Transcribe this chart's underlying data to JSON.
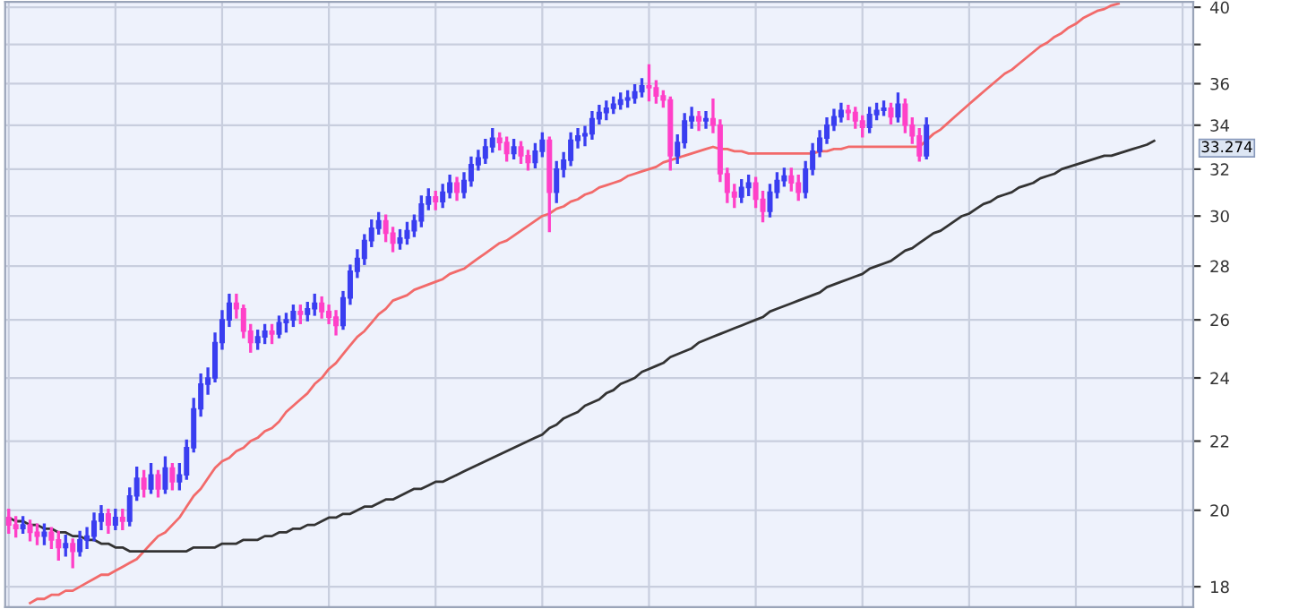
{
  "chart_data": {
    "type": "candlestick",
    "log": true,
    "grid": true,
    "tick_labels": "y",
    "categories": [
      null,
      null,
      null,
      null,
      null,
      null,
      null,
      null,
      null,
      null,
      null,
      null,
      null,
      null,
      null,
      null,
      null,
      null,
      null,
      null,
      null,
      null,
      null,
      null,
      null,
      null,
      null,
      null,
      null,
      null,
      null,
      null,
      null,
      null,
      null,
      null,
      null,
      null,
      null,
      null,
      null,
      null,
      null,
      null,
      null,
      null,
      null,
      null,
      null,
      null,
      null,
      null,
      null,
      null,
      null,
      null,
      null,
      null,
      null,
      null,
      null,
      null,
      null,
      null,
      null,
      null,
      null,
      null,
      null,
      null,
      null,
      null,
      null,
      null,
      null,
      null,
      null,
      null,
      null,
      null,
      null,
      null,
      null,
      null,
      null,
      null,
      null,
      null,
      null,
      null,
      null,
      null,
      null,
      null,
      null,
      null,
      null,
      null,
      null,
      null,
      null,
      null,
      null,
      null,
      null,
      null,
      null,
      null,
      null,
      null,
      null,
      null,
      null,
      null,
      null,
      null,
      null,
      null,
      null,
      null,
      null,
      null,
      null,
      null,
      null,
      null,
      null,
      null,
      null,
      null,
      null,
      null,
      null,
      null,
      null,
      null,
      null,
      null,
      null,
      null,
      null,
      null,
      null,
      null,
      null,
      null,
      null,
      null,
      null,
      null,
      null,
      null,
      null,
      null,
      null,
      null,
      null,
      null,
      null,
      null,
      null,
      null,
      null,
      null,
      null,
      null,
      null
    ],
    "ohlc": [
      [
        19.8,
        20.0,
        19.4,
        19.6
      ],
      [
        19.6,
        19.8,
        19.3,
        19.5
      ],
      [
        19.5,
        19.8,
        19.4,
        19.6
      ],
      [
        19.6,
        19.7,
        19.2,
        19.4
      ],
      [
        19.4,
        19.6,
        19.1,
        19.3
      ],
      [
        19.3,
        19.6,
        19.1,
        19.4
      ],
      [
        19.4,
        19.5,
        19.0,
        19.2
      ],
      [
        19.2,
        19.4,
        18.7,
        19.0
      ],
      [
        19.0,
        19.3,
        18.8,
        19.1
      ],
      [
        19.1,
        19.2,
        18.5,
        18.9
      ],
      [
        18.9,
        19.4,
        18.8,
        19.2
      ],
      [
        19.2,
        19.5,
        19.0,
        19.3
      ],
      [
        19.3,
        19.9,
        19.2,
        19.7
      ],
      [
        19.7,
        20.1,
        19.5,
        19.9
      ],
      [
        19.9,
        20.0,
        19.4,
        19.6
      ],
      [
        19.6,
        20.0,
        19.5,
        19.8
      ],
      [
        19.8,
        20.0,
        19.5,
        19.7
      ],
      [
        19.7,
        20.6,
        19.6,
        20.4
      ],
      [
        20.4,
        21.2,
        20.3,
        20.9
      ],
      [
        20.9,
        21.1,
        20.4,
        20.6
      ],
      [
        20.6,
        21.3,
        20.5,
        21.0
      ],
      [
        21.0,
        21.1,
        20.4,
        20.6
      ],
      [
        20.6,
        21.5,
        20.5,
        21.2
      ],
      [
        21.2,
        21.3,
        20.6,
        20.8
      ],
      [
        20.8,
        21.3,
        20.6,
        21.0
      ],
      [
        21.0,
        22.0,
        20.9,
        21.8
      ],
      [
        21.8,
        23.3,
        21.7,
        23.0
      ],
      [
        23.0,
        24.1,
        22.8,
        23.8
      ],
      [
        23.8,
        24.3,
        23.5,
        24.0
      ],
      [
        24.0,
        25.5,
        23.9,
        25.2
      ],
      [
        25.2,
        26.3,
        25.0,
        26.0
      ],
      [
        26.0,
        26.9,
        25.8,
        26.6
      ],
      [
        26.6,
        26.9,
        26.1,
        26.4
      ],
      [
        26.4,
        26.5,
        25.4,
        25.6
      ],
      [
        25.6,
        25.8,
        24.9,
        25.2
      ],
      [
        25.2,
        25.6,
        25.0,
        25.4
      ],
      [
        25.4,
        25.8,
        25.2,
        25.6
      ],
      [
        25.6,
        25.8,
        25.2,
        25.5
      ],
      [
        25.5,
        26.1,
        25.4,
        25.9
      ],
      [
        25.9,
        26.2,
        25.6,
        26.0
      ],
      [
        26.0,
        26.5,
        25.8,
        26.3
      ],
      [
        26.3,
        26.5,
        25.9,
        26.2
      ],
      [
        26.2,
        26.6,
        26.0,
        26.4
      ],
      [
        26.4,
        26.9,
        26.2,
        26.6
      ],
      [
        26.6,
        26.8,
        26.1,
        26.3
      ],
      [
        26.3,
        26.5,
        25.9,
        26.1
      ],
      [
        26.1,
        26.3,
        25.5,
        25.8
      ],
      [
        25.8,
        27.0,
        25.7,
        26.8
      ],
      [
        26.8,
        28.0,
        26.6,
        27.8
      ],
      [
        27.8,
        28.6,
        27.6,
        28.3
      ],
      [
        28.3,
        29.2,
        28.1,
        29.0
      ],
      [
        29.0,
        29.8,
        28.8,
        29.5
      ],
      [
        29.5,
        30.1,
        29.3,
        29.8
      ],
      [
        29.8,
        30.0,
        29.0,
        29.3
      ],
      [
        29.3,
        29.5,
        28.6,
        28.9
      ],
      [
        28.9,
        29.4,
        28.7,
        29.1
      ],
      [
        29.1,
        29.7,
        28.9,
        29.4
      ],
      [
        29.4,
        30.0,
        29.2,
        29.8
      ],
      [
        29.8,
        30.8,
        29.6,
        30.5
      ],
      [
        30.5,
        31.1,
        30.3,
        30.8
      ],
      [
        30.8,
        31.0,
        30.3,
        30.6
      ],
      [
        30.6,
        31.3,
        30.4,
        31.0
      ],
      [
        31.0,
        31.7,
        30.8,
        31.4
      ],
      [
        31.4,
        31.6,
        30.7,
        31.0
      ],
      [
        31.0,
        31.8,
        30.8,
        31.5
      ],
      [
        31.5,
        32.5,
        31.3,
        32.2
      ],
      [
        32.2,
        32.8,
        32.0,
        32.5
      ],
      [
        32.5,
        33.3,
        32.3,
        33.0
      ],
      [
        33.0,
        33.8,
        32.8,
        33.4
      ],
      [
        33.4,
        33.6,
        32.9,
        33.2
      ],
      [
        33.2,
        33.4,
        32.4,
        32.7
      ],
      [
        32.7,
        33.3,
        32.5,
        33.0
      ],
      [
        33.0,
        33.2,
        32.3,
        32.6
      ],
      [
        32.6,
        32.8,
        32.0,
        32.3
      ],
      [
        32.3,
        33.1,
        32.1,
        32.8
      ],
      [
        32.8,
        33.6,
        32.6,
        33.3
      ],
      [
        33.3,
        33.4,
        29.4,
        31.0
      ],
      [
        31.0,
        32.3,
        30.6,
        32.0
      ],
      [
        32.0,
        32.7,
        31.7,
        32.4
      ],
      [
        32.4,
        33.6,
        32.2,
        33.3
      ],
      [
        33.3,
        33.8,
        33.0,
        33.5
      ],
      [
        33.5,
        33.9,
        33.1,
        33.6
      ],
      [
        33.6,
        34.6,
        33.4,
        34.3
      ],
      [
        34.3,
        34.9,
        34.1,
        34.6
      ],
      [
        34.6,
        35.1,
        34.3,
        34.8
      ],
      [
        34.8,
        35.3,
        34.6,
        35.0
      ],
      [
        35.0,
        35.5,
        34.8,
        35.2
      ],
      [
        35.2,
        35.6,
        34.9,
        35.3
      ],
      [
        35.3,
        35.9,
        35.1,
        35.6
      ],
      [
        35.6,
        36.2,
        35.4,
        35.9
      ],
      [
        35.9,
        36.9,
        35.2,
        35.8
      ],
      [
        35.8,
        36.1,
        35.1,
        35.4
      ],
      [
        35.4,
        35.6,
        34.9,
        35.2
      ],
      [
        35.2,
        35.3,
        32.0,
        32.6
      ],
      [
        32.6,
        33.5,
        32.3,
        33.2
      ],
      [
        33.2,
        34.5,
        33.0,
        34.2
      ],
      [
        34.2,
        34.8,
        33.9,
        34.4
      ],
      [
        34.4,
        34.6,
        33.8,
        34.2
      ],
      [
        34.2,
        34.6,
        33.9,
        34.3
      ],
      [
        34.3,
        35.2,
        33.7,
        34.0
      ],
      [
        34.0,
        34.2,
        31.5,
        31.8
      ],
      [
        31.8,
        32.0,
        30.6,
        31.0
      ],
      [
        31.0,
        31.3,
        30.4,
        30.8
      ],
      [
        30.8,
        31.5,
        30.6,
        31.2
      ],
      [
        31.2,
        31.7,
        30.9,
        31.4
      ],
      [
        31.4,
        31.6,
        30.4,
        30.7
      ],
      [
        30.7,
        31.0,
        29.8,
        30.2
      ],
      [
        30.2,
        31.3,
        30.0,
        31.0
      ],
      [
        31.0,
        31.8,
        30.8,
        31.5
      ],
      [
        31.5,
        32.0,
        31.3,
        31.7
      ],
      [
        31.7,
        32.0,
        31.1,
        31.4
      ],
      [
        31.4,
        31.7,
        30.7,
        31.0
      ],
      [
        31.0,
        32.3,
        30.8,
        32.0
      ],
      [
        32.0,
        33.1,
        31.8,
        32.8
      ],
      [
        32.8,
        33.7,
        32.6,
        33.4
      ],
      [
        33.4,
        34.3,
        33.2,
        34.0
      ],
      [
        34.0,
        34.7,
        33.8,
        34.4
      ],
      [
        34.4,
        35.0,
        34.2,
        34.7
      ],
      [
        34.7,
        34.9,
        34.3,
        34.6
      ],
      [
        34.6,
        34.8,
        33.9,
        34.2
      ],
      [
        34.2,
        34.4,
        33.5,
        33.9
      ],
      [
        33.9,
        34.8,
        33.7,
        34.5
      ],
      [
        34.5,
        35.0,
        34.3,
        34.7
      ],
      [
        34.7,
        35.1,
        34.5,
        34.8
      ],
      [
        34.8,
        35.0,
        34.1,
        34.4
      ],
      [
        34.4,
        35.5,
        34.2,
        35.0
      ],
      [
        35.0,
        35.2,
        33.7,
        34.0
      ],
      [
        34.0,
        34.3,
        33.2,
        33.5
      ],
      [
        33.5,
        33.8,
        32.4,
        32.6
      ],
      [
        32.6,
        34.3,
        32.5,
        34.0
      ],
      null,
      null,
      null,
      null,
      null,
      null,
      null,
      null,
      null,
      null,
      null,
      null,
      null,
      null,
      null,
      null,
      null,
      null,
      null,
      null,
      null,
      null,
      null,
      null,
      null,
      null,
      null,
      null,
      null,
      null,
      null,
      null,
      null,
      null,
      null,
      null,
      null
    ],
    "colors": [
      "#ff40c8",
      "#ff40c8",
      "#3a3ef0",
      "#ff40c8",
      "#ff40c8",
      "#3a3ef0",
      "#ff40c8",
      "#ff40c8",
      "#3a3ef0",
      "#ff40c8",
      "#3a3ef0",
      "#3a3ef0",
      "#3a3ef0",
      "#3a3ef0",
      "#ff40c8",
      "#3a3ef0",
      "#ff40c8",
      "#3a3ef0",
      "#3a3ef0",
      "#ff40c8",
      "#3a3ef0",
      "#ff40c8",
      "#3a3ef0",
      "#ff40c8",
      "#3a3ef0",
      "#3a3ef0",
      "#3a3ef0",
      "#3a3ef0",
      "#3a3ef0",
      "#3a3ef0",
      "#3a3ef0",
      "#3a3ef0",
      "#ff40c8",
      "#ff40c8",
      "#ff40c8",
      "#3a3ef0",
      "#3a3ef0",
      "#ff40c8",
      "#3a3ef0",
      "#3a3ef0",
      "#3a3ef0",
      "#ff40c8",
      "#3a3ef0",
      "#3a3ef0",
      "#ff40c8",
      "#ff40c8",
      "#ff40c8",
      "#3a3ef0",
      "#3a3ef0",
      "#3a3ef0",
      "#3a3ef0",
      "#3a3ef0",
      "#3a3ef0",
      "#ff40c8",
      "#ff40c8",
      "#3a3ef0",
      "#3a3ef0",
      "#3a3ef0",
      "#3a3ef0",
      "#3a3ef0",
      "#ff40c8",
      "#3a3ef0",
      "#3a3ef0",
      "#ff40c8",
      "#3a3ef0",
      "#3a3ef0",
      "#3a3ef0",
      "#3a3ef0",
      "#3a3ef0",
      "#ff40c8",
      "#ff40c8",
      "#3a3ef0",
      "#ff40c8",
      "#ff40c8",
      "#3a3ef0",
      "#3a3ef0",
      "#ff40c8",
      "#3a3ef0",
      "#3a3ef0",
      "#3a3ef0",
      "#3a3ef0",
      "#3a3ef0",
      "#3a3ef0",
      "#3a3ef0",
      "#3a3ef0",
      "#3a3ef0",
      "#3a3ef0",
      "#3a3ef0",
      "#3a3ef0",
      "#3a3ef0",
      "#ff40c8",
      "#ff40c8",
      "#ff40c8",
      "#ff40c8",
      "#3a3ef0",
      "#3a3ef0",
      "#3a3ef0",
      "#ff40c8",
      "#3a3ef0",
      "#ff40c8",
      "#ff40c8",
      "#ff40c8",
      "#ff40c8",
      "#3a3ef0",
      "#3a3ef0",
      "#ff40c8",
      "#ff40c8",
      "#3a3ef0",
      "#3a3ef0",
      "#3a3ef0",
      "#ff40c8",
      "#ff40c8",
      "#3a3ef0",
      "#3a3ef0",
      "#3a3ef0",
      "#3a3ef0",
      "#3a3ef0",
      "#3a3ef0",
      "#ff40c8",
      "#ff40c8",
      "#ff40c8",
      "#3a3ef0",
      "#3a3ef0",
      "#3a3ef0",
      "#ff40c8",
      "#3a3ef0",
      "#ff40c8",
      "#ff40c8",
      "#ff40c8",
      "#3a3ef0",
      null,
      null,
      null,
      null,
      null,
      null,
      null,
      null,
      null,
      null,
      null,
      null,
      null,
      null,
      null,
      null,
      null,
      null,
      null,
      null,
      null,
      null,
      null,
      null,
      null,
      null,
      null,
      null,
      null,
      null,
      null,
      null,
      null,
      null,
      null,
      null,
      null
    ],
    "series": [
      {
        "type": "line",
        "color": "#f26a6a",
        "values": [
          null,
          null,
          null,
          17.6,
          17.7,
          17.7,
          17.8,
          17.8,
          17.9,
          17.9,
          18.0,
          18.1,
          18.2,
          18.3,
          18.3,
          18.4,
          18.5,
          18.6,
          18.7,
          18.9,
          19.1,
          19.3,
          19.4,
          19.6,
          19.8,
          20.1,
          20.4,
          20.6,
          20.9,
          21.2,
          21.4,
          21.5,
          21.7,
          21.8,
          22.0,
          22.1,
          22.3,
          22.4,
          22.6,
          22.9,
          23.1,
          23.3,
          23.5,
          23.8,
          24.0,
          24.3,
          24.5,
          24.8,
          25.1,
          25.4,
          25.6,
          25.9,
          26.2,
          26.4,
          26.7,
          26.8,
          26.9,
          27.1,
          27.2,
          27.3,
          27.4,
          27.5,
          27.7,
          27.8,
          27.9,
          28.1,
          28.3,
          28.5,
          28.7,
          28.9,
          29.0,
          29.2,
          29.4,
          29.6,
          29.8,
          30.0,
          30.1,
          30.3,
          30.4,
          30.6,
          30.7,
          30.9,
          31.0,
          31.2,
          31.3,
          31.4,
          31.5,
          31.7,
          31.8,
          31.9,
          32.0,
          32.1,
          32.3,
          32.4,
          32.5,
          32.6,
          32.7,
          32.8,
          32.9,
          33.0,
          32.9,
          32.9,
          32.8,
          32.8,
          32.7,
          32.7,
          32.7,
          32.7,
          32.7,
          32.7,
          32.7,
          32.7,
          32.7,
          32.7,
          32.8,
          32.8,
          32.9,
          32.9,
          33.0,
          33.0,
          33.0,
          33.0,
          33.0,
          33.0,
          33.0,
          33.0,
          33.0,
          33.0,
          33.0,
          33.3,
          33.6,
          33.8,
          34.1,
          34.4,
          34.7,
          35.0,
          35.3,
          35.6,
          35.9,
          36.2,
          36.5,
          36.7,
          37.0,
          37.3,
          37.6,
          37.9,
          38.1,
          38.4,
          38.6,
          38.9,
          39.1,
          39.4,
          39.6,
          39.8,
          39.9,
          40.1,
          40.2,
          null,
          null,
          null,
          null,
          null,
          null,
          null,
          null,
          null,
          null
        ]
      },
      {
        "type": "line",
        "color": "#333333",
        "values": [
          19.8,
          19.7,
          19.7,
          19.6,
          19.6,
          19.5,
          19.5,
          19.4,
          19.4,
          19.3,
          19.3,
          19.2,
          19.2,
          19.1,
          19.1,
          19.0,
          19.0,
          18.9,
          18.9,
          18.9,
          18.9,
          18.9,
          18.9,
          18.9,
          18.9,
          18.9,
          19.0,
          19.0,
          19.0,
          19.0,
          19.1,
          19.1,
          19.1,
          19.2,
          19.2,
          19.2,
          19.3,
          19.3,
          19.4,
          19.4,
          19.5,
          19.5,
          19.6,
          19.6,
          19.7,
          19.8,
          19.8,
          19.9,
          19.9,
          20.0,
          20.1,
          20.1,
          20.2,
          20.3,
          20.3,
          20.4,
          20.5,
          20.6,
          20.6,
          20.7,
          20.8,
          20.8,
          20.9,
          21.0,
          21.1,
          21.2,
          21.3,
          21.4,
          21.5,
          21.6,
          21.7,
          21.8,
          21.9,
          22.0,
          22.1,
          22.2,
          22.4,
          22.5,
          22.7,
          22.8,
          22.9,
          23.1,
          23.2,
          23.3,
          23.5,
          23.6,
          23.8,
          23.9,
          24.0,
          24.2,
          24.3,
          24.4,
          24.5,
          24.7,
          24.8,
          24.9,
          25.0,
          25.2,
          25.3,
          25.4,
          25.5,
          25.6,
          25.7,
          25.8,
          25.9,
          26.0,
          26.1,
          26.3,
          26.4,
          26.5,
          26.6,
          26.7,
          26.8,
          26.9,
          27.0,
          27.2,
          27.3,
          27.4,
          27.5,
          27.6,
          27.7,
          27.9,
          28.0,
          28.1,
          28.2,
          28.4,
          28.6,
          28.7,
          28.9,
          29.1,
          29.3,
          29.4,
          29.6,
          29.8,
          30.0,
          30.1,
          30.3,
          30.5,
          30.6,
          30.8,
          30.9,
          31.0,
          31.2,
          31.3,
          31.4,
          31.6,
          31.7,
          31.8,
          32.0,
          32.1,
          32.2,
          32.3,
          32.4,
          32.5,
          32.6,
          32.6,
          32.7,
          32.8,
          32.9,
          33.0,
          33.1,
          33.274,
          null,
          null,
          null,
          null,
          null
        ]
      }
    ],
    "ylim": [
      17.5,
      40.3
    ],
    "yticks": [
      18,
      20,
      22,
      24,
      26,
      28,
      30,
      32,
      34,
      36,
      {
        "value": 38,
        "label": null
      },
      40
    ],
    "annotations": [
      "33.274"
    ]
  }
}
